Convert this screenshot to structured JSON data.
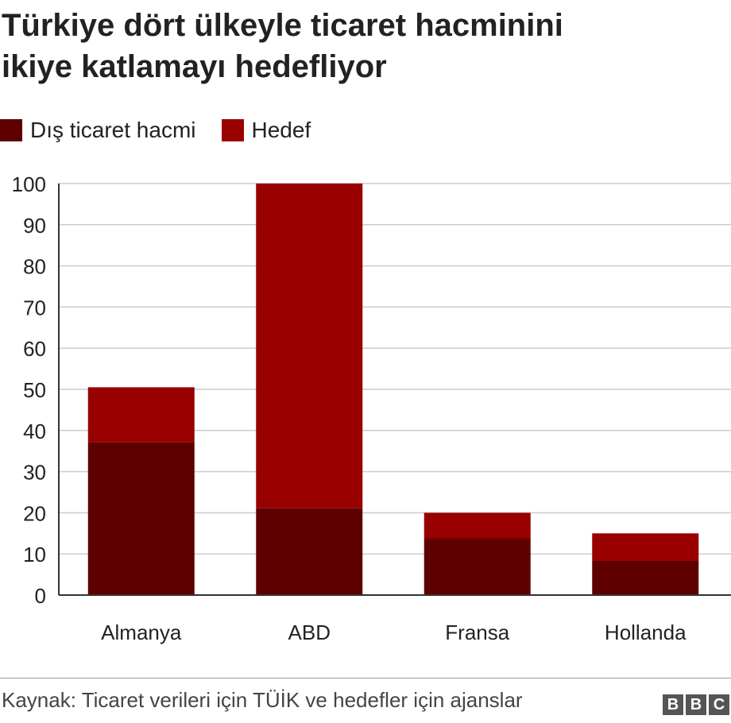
{
  "title_lines": [
    "Türkiye dört ülkeyle ticaret hacminini",
    "ikiye katlamayı hedefliyor"
  ],
  "legend": [
    {
      "label": "Dış ticaret hacmi",
      "color": "#5e0000"
    },
    {
      "label": "Hedef",
      "color": "#990000"
    }
  ],
  "source": "Kaynak: Ticaret verileri için TÜİK ve hedefler için ajanslar",
  "logo": {
    "letters": [
      "B",
      "B",
      "C"
    ]
  },
  "chart_data": {
    "type": "bar",
    "stacked": true,
    "categories": [
      "Almanya",
      "ABD",
      "Fransa",
      "Hollanda"
    ],
    "series": [
      {
        "name": "Dış ticaret hacmi",
        "color": "#5e0000",
        "values": [
          37.2,
          21.1,
          13.8,
          8.3
        ]
      },
      {
        "name": "Hedef",
        "color": "#990000",
        "values": [
          13.3,
          78.9,
          6.2,
          6.7
        ]
      }
    ],
    "ylim": [
      0,
      100
    ],
    "yticks": [
      0,
      10,
      20,
      30,
      40,
      50,
      60,
      70,
      80,
      90,
      100
    ],
    "grid": true,
    "legend_position": "top-left"
  }
}
